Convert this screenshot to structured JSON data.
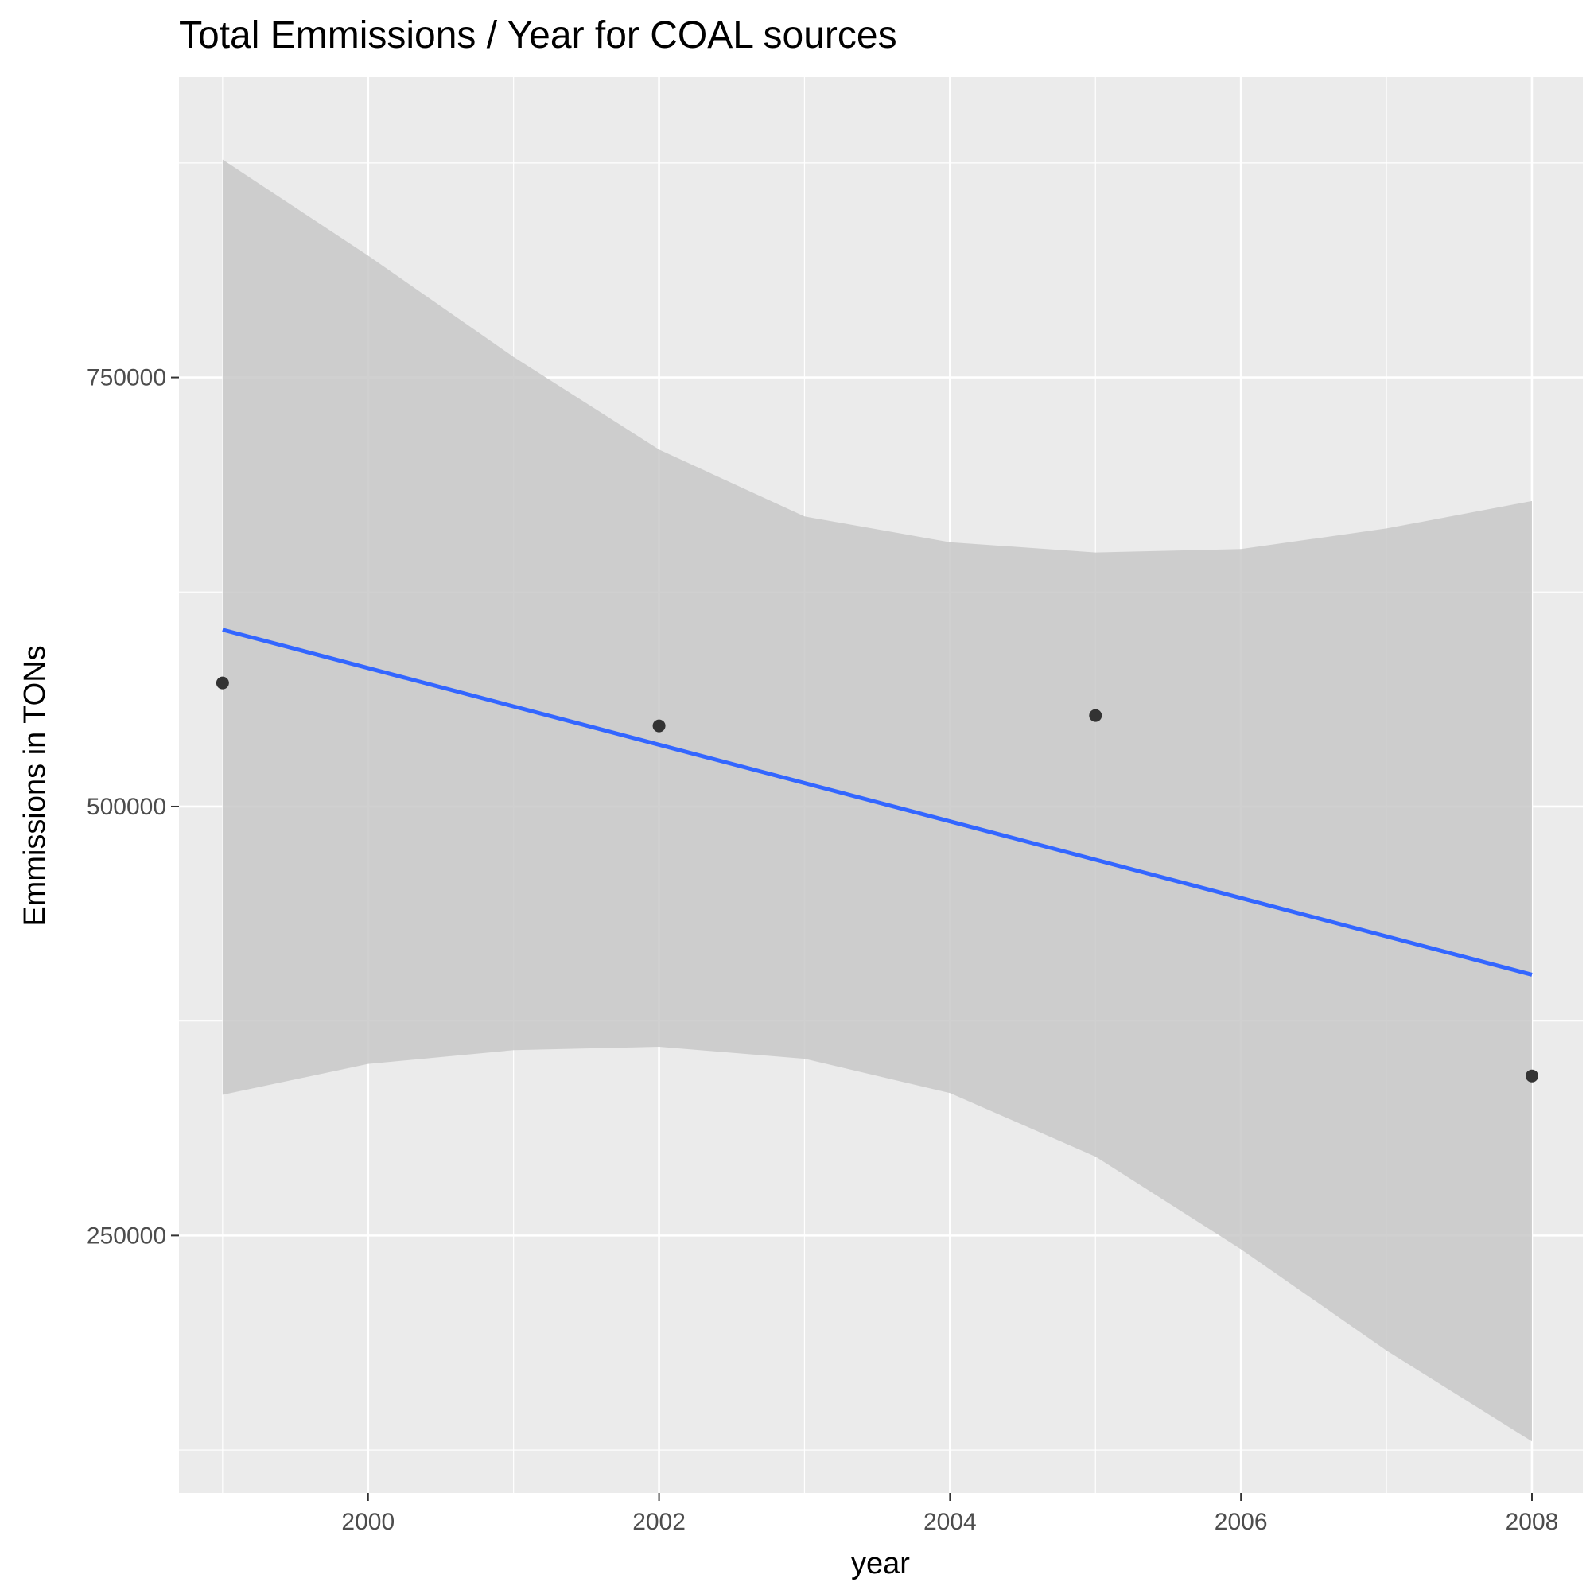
{
  "chart_data": {
    "type": "scatter",
    "title": "Total Emmissions / Year for COAL sources",
    "xlabel": "year",
    "ylabel": "Emmissions in TONs",
    "xlim": [
      1998.7,
      2008.35
    ],
    "ylim": [
      100000,
      925000
    ],
    "x_ticks": [
      {
        "value": 2000,
        "label": "2000"
      },
      {
        "value": 2002,
        "label": "2002"
      },
      {
        "value": 2004,
        "label": "2004"
      },
      {
        "value": 2006,
        "label": "2006"
      },
      {
        "value": 2008,
        "label": "2008"
      }
    ],
    "x_minor_ticks": [
      1999,
      2001,
      2003,
      2005,
      2007
    ],
    "y_ticks": [
      {
        "value": 250000,
        "label": "250000"
      },
      {
        "value": 500000,
        "label": "500000"
      },
      {
        "value": 750000,
        "label": "750000"
      }
    ],
    "y_minor_ticks": [
      125000,
      375000,
      625000,
      875000
    ],
    "grid": true,
    "points": [
      {
        "x": 1999,
        "y": 572000
      },
      {
        "x": 2002,
        "y": 547000
      },
      {
        "x": 2005,
        "y": 553000
      },
      {
        "x": 2008,
        "y": 343000
      }
    ],
    "trend": {
      "method": "linear fit",
      "x": [
        1999,
        2008
      ],
      "y": [
        603000,
        402000
      ]
    },
    "confidence_band": {
      "x": [
        1999,
        2000,
        2001,
        2002,
        2003,
        2004,
        2005,
        2006,
        2007,
        2008
      ],
      "upper": [
        877000,
        821000,
        762000,
        708000,
        669000,
        654000,
        648000,
        650000,
        662000,
        678000
      ],
      "lower": [
        332000,
        350000,
        358000,
        360000,
        353000,
        333000,
        296000,
        242000,
        183000,
        130000
      ]
    },
    "colors": {
      "panel": "#EBEBEB",
      "grid": "#FFFFFF",
      "band": "#C8C8C8",
      "trend": "#3366FF",
      "points": "#333333",
      "tick_text": "#4D4D4D",
      "tick_mark": "#333333"
    }
  }
}
